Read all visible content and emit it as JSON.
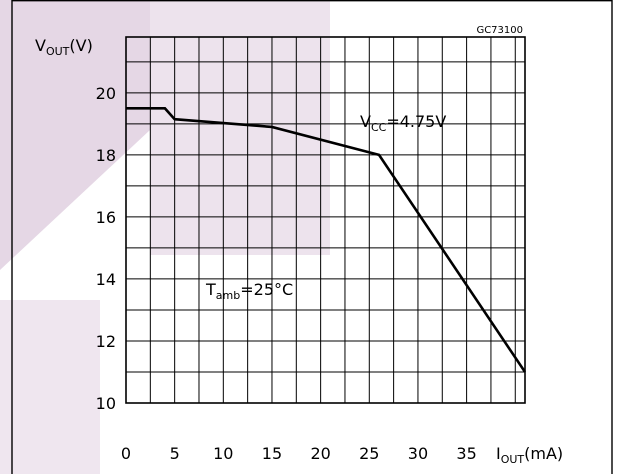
{
  "figure": {
    "code": "GC73100",
    "y_label_main": "V",
    "y_label_sub": "OUT",
    "y_label_unit": "(V)",
    "x_label_main": "I",
    "x_label_sub": "OUT",
    "x_label_unit": "(mA)",
    "vcc_main": "V",
    "vcc_sub": "CC",
    "vcc_value": "=4.75V",
    "tamb_main": "T",
    "tamb_sub": "amb",
    "tamb_value": "=25°C"
  },
  "chart_data": {
    "type": "line",
    "title": "",
    "xlabel": "IOUT (mA)",
    "ylabel": "VOUT (V)",
    "xlim": [
      0,
      41
    ],
    "ylim": [
      10,
      21.8
    ],
    "grid": true,
    "x_ticks": [
      0,
      5,
      10,
      15,
      20,
      25,
      30,
      35
    ],
    "x_tick_labels": [
      "0",
      "5",
      "10",
      "15",
      "20",
      "25",
      "30",
      "35"
    ],
    "y_ticks": [
      10,
      12,
      14,
      16,
      18,
      20
    ],
    "y_tick_labels": [
      "10",
      "12",
      "14",
      "16",
      "18",
      "20"
    ],
    "series": [
      {
        "x": [
          0,
          4,
          5,
          15,
          26,
          41
        ],
        "y": [
          19.5,
          19.5,
          19.15,
          18.9,
          18.0,
          11.0
        ]
      }
    ],
    "annotations": [
      {
        "text": "VCC=4.75V",
        "x": 23.5,
        "y": 19.45
      },
      {
        "text": "Tamb=25°C",
        "x": 8,
        "y": 14.5
      }
    ]
  }
}
